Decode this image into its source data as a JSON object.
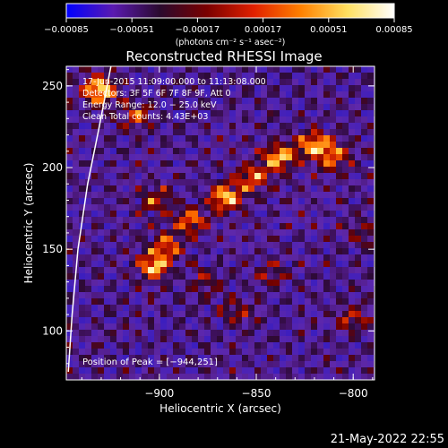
{
  "chart_data": {
    "type": "heatmap",
    "title": "Reconstructed RHESSI Image",
    "xlabel": "Heliocentric X (arcsec)",
    "ylabel": "Heliocentric Y (arcsec)",
    "xlim": [
      -948,
      -789
    ],
    "ylim": [
      70,
      262
    ],
    "xticks": [
      -900,
      -850,
      -800
    ],
    "xtick_labels": [
      "−900",
      "−850",
      "−800"
    ],
    "yticks": [
      100,
      150,
      200,
      250
    ],
    "ytick_labels": [
      "100",
      "150",
      "200",
      "250"
    ],
    "colorbar": {
      "range": [
        -0.00085,
        0.00085
      ],
      "ticks": [
        -0.00085,
        -0.00051,
        -0.00017,
        0.00017,
        0.00051,
        0.00085
      ],
      "tick_labels": [
        "−0.00085",
        "−0.00051",
        "−0.00017",
        "0.00017",
        "0.00051",
        "0.00085"
      ],
      "unit_label": "(photons cm⁻² s⁻¹ asec⁻²)",
      "colors": [
        "#0000ff",
        "#5a1ab0",
        "#2a0a2e",
        "#7a0000",
        "#e02000",
        "#ff8000",
        "#ffe060",
        "#ffffff"
      ]
    },
    "info_lines": [
      "17-Jun-2015 11:09:00.000 to 11:13:08.000",
      "Detectors: 3F 5F 6F 7F 8F 9F, Att 0",
      "Energy Range: 12.0 − 25.0 keV",
      "Clean    Total counts: 4.43E+03"
    ],
    "peak_label": "Position of Peak = [−944,251]",
    "peak": [
      -944,
      251
    ],
    "limb_points": [
      [
        -947,
        75
      ],
      [
        -945,
        110
      ],
      [
        -942,
        150
      ],
      [
        -937,
        190
      ],
      [
        -931,
        225
      ],
      [
        -925,
        262
      ]
    ],
    "sources": [
      {
        "x": -931,
        "y": 248,
        "intensity": 1.0
      },
      {
        "x": -903,
        "y": 140,
        "intensity": 0.85
      },
      {
        "x": -896,
        "y": 152,
        "intensity": 0.55
      },
      {
        "x": -884,
        "y": 167,
        "intensity": 0.7
      },
      {
        "x": -866,
        "y": 182,
        "intensity": 0.85
      },
      {
        "x": -852,
        "y": 194,
        "intensity": 0.7
      },
      {
        "x": -838,
        "y": 206,
        "intensity": 0.9
      },
      {
        "x": -820,
        "y": 214,
        "intensity": 0.85
      },
      {
        "x": -809,
        "y": 206,
        "intensity": 0.6
      },
      {
        "x": -902,
        "y": 180,
        "intensity": 0.5
      },
      {
        "x": -912,
        "y": 232,
        "intensity": 0.55
      },
      {
        "x": -860,
        "y": 112,
        "intensity": 0.4
      },
      {
        "x": -842,
        "y": 135,
        "intensity": 0.35
      },
      {
        "x": -876,
        "y": 130,
        "intensity": 0.4
      },
      {
        "x": -800,
        "y": 108,
        "intensity": 0.45
      },
      {
        "x": -795,
        "y": 160,
        "intensity": 0.3
      }
    ]
  },
  "timestamp": "21-May-2022 22:55"
}
